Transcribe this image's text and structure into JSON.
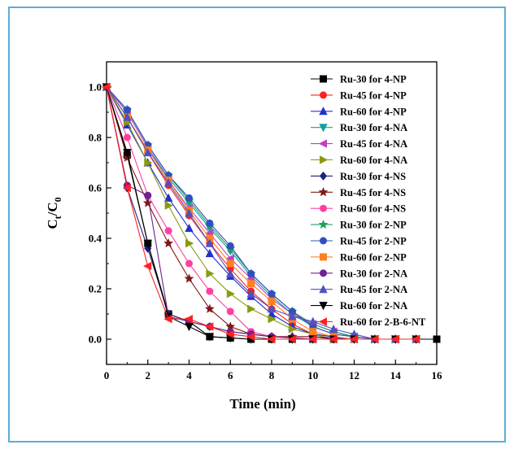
{
  "chart_data": {
    "type": "line",
    "xlabel": "Time (min)",
    "ylabel_main": "C",
    "ylabel_sub1": "t",
    "ylabel_mid": "/C",
    "ylabel_sub2": "0",
    "xlim": [
      0,
      16
    ],
    "ylim": [
      -0.1,
      1.1
    ],
    "xticks": [
      0,
      2,
      4,
      6,
      8,
      10,
      12,
      14,
      16
    ],
    "yticks": [
      0.0,
      0.2,
      0.4,
      0.6,
      0.8,
      1.0
    ],
    "xtick_labels": [
      "0",
      "2",
      "4",
      "6",
      "8",
      "10",
      "12",
      "14",
      "16"
    ],
    "ytick_labels": [
      "0.0",
      "0.2",
      "0.4",
      "0.6",
      "0.8",
      "1.0"
    ],
    "grid": false,
    "legend_position": "top-right",
    "series": [
      {
        "name": "Ru-30 for 4-NP",
        "color": "#000000",
        "marker": "square",
        "x": [
          0,
          1,
          2,
          3,
          4,
          5,
          6,
          7,
          8,
          9,
          10,
          11,
          12,
          13,
          14,
          15,
          16
        ],
        "y": [
          1.0,
          0.73,
          0.38,
          0.1,
          0.07,
          0.01,
          0.005,
          0.0,
          0.0,
          0.0,
          0.0,
          0.0,
          0.0,
          0.0,
          0.0,
          0.0,
          0.0
        ]
      },
      {
        "name": "Ru-45 for 4-NP",
        "color": "#ff2020",
        "marker": "circle",
        "x": [
          0,
          1,
          2,
          3,
          4,
          5,
          6,
          7,
          8,
          9,
          10,
          11,
          12,
          13,
          14,
          15
        ],
        "y": [
          1.0,
          0.88,
          0.74,
          0.61,
          0.49,
          0.38,
          0.28,
          0.19,
          0.12,
          0.06,
          0.02,
          0.01,
          0.0,
          0.0,
          0.0,
          0.0
        ]
      },
      {
        "name": "Ru-60 for 4-NP",
        "color": "#2030d0",
        "marker": "triangle-up",
        "x": [
          0,
          1,
          2,
          3,
          4,
          5,
          6,
          7,
          8,
          9,
          10,
          11,
          12,
          13,
          14,
          15
        ],
        "y": [
          1.0,
          0.85,
          0.7,
          0.56,
          0.44,
          0.34,
          0.25,
          0.17,
          0.1,
          0.05,
          0.02,
          0.01,
          0.0,
          0.0,
          0.0,
          0.0
        ]
      },
      {
        "name": "Ru-30 for 4-NA",
        "color": "#10a0a0",
        "marker": "triangle-down",
        "x": [
          0,
          1,
          2,
          3,
          4,
          5,
          6,
          7,
          8,
          9,
          10,
          11,
          12,
          13,
          14,
          15
        ],
        "y": [
          1.0,
          0.9,
          0.76,
          0.64,
          0.54,
          0.44,
          0.35,
          0.25,
          0.17,
          0.1,
          0.05,
          0.02,
          0.01,
          0.0,
          0.0,
          0.0
        ]
      },
      {
        "name": "Ru-45 for 4-NA",
        "color": "#c040c0",
        "marker": "triangle-left",
        "x": [
          0,
          1,
          2,
          3,
          4,
          5,
          6,
          7,
          8,
          9,
          10,
          11,
          12,
          13,
          14,
          15
        ],
        "y": [
          1.0,
          0.9,
          0.76,
          0.63,
          0.52,
          0.42,
          0.32,
          0.24,
          0.16,
          0.1,
          0.06,
          0.03,
          0.01,
          0.0,
          0.0,
          0.0
        ]
      },
      {
        "name": "Ru-60 for 4-NA",
        "color": "#8a9a10",
        "marker": "triangle-right",
        "x": [
          0,
          1,
          2,
          3,
          4,
          5,
          6,
          7,
          8,
          9,
          10,
          11,
          12,
          13,
          14,
          15
        ],
        "y": [
          1.0,
          0.86,
          0.7,
          0.53,
          0.38,
          0.26,
          0.18,
          0.12,
          0.08,
          0.04,
          0.02,
          0.0,
          0.0,
          0.0,
          0.0,
          0.0
        ]
      },
      {
        "name": "Ru-30 for 4-NS",
        "color": "#202080",
        "marker": "diamond",
        "x": [
          0,
          1,
          2,
          3,
          4,
          5,
          6,
          7,
          8,
          9,
          10,
          11,
          12,
          13,
          14,
          15
        ],
        "y": [
          1.0,
          0.6,
          0.36,
          0.1,
          0.07,
          0.05,
          0.03,
          0.02,
          0.01,
          0.01,
          0.01,
          0.005,
          0.0,
          0.0,
          0.0,
          0.0
        ]
      },
      {
        "name": "Ru-45 for 4-NS",
        "color": "#801818",
        "marker": "star",
        "x": [
          0,
          1,
          2,
          3,
          4,
          5,
          6,
          7,
          8,
          9,
          10,
          11,
          12,
          13,
          14,
          15
        ],
        "y": [
          1.0,
          0.72,
          0.54,
          0.38,
          0.24,
          0.12,
          0.05,
          0.02,
          0.01,
          0.01,
          0.01,
          0.0,
          0.0,
          0.0,
          0.0,
          0.0
        ]
      },
      {
        "name": "Ru-60 for 4-NS",
        "color": "#ff3fa0",
        "marker": "circle",
        "x": [
          0,
          1,
          2,
          3,
          4,
          5,
          6,
          7,
          8,
          9,
          10,
          11,
          12,
          13,
          14,
          15
        ],
        "y": [
          1.0,
          0.8,
          0.57,
          0.43,
          0.3,
          0.19,
          0.11,
          0.03,
          0.01,
          0.005,
          0.0,
          0.0,
          0.0,
          0.0,
          0.0,
          0.0
        ]
      },
      {
        "name": "Ru-30 for 2-NP",
        "color": "#20a060",
        "marker": "star",
        "x": [
          0,
          1,
          2,
          3,
          4,
          5,
          6,
          7,
          8,
          9,
          10,
          11,
          12,
          13,
          14,
          15
        ],
        "y": [
          1.0,
          0.91,
          0.77,
          0.65,
          0.55,
          0.45,
          0.36,
          0.26,
          0.18,
          0.11,
          0.06,
          0.03,
          0.01,
          0.0,
          0.0,
          0.0
        ]
      },
      {
        "name": "Ru-45 for 2-NP",
        "color": "#3050c0",
        "marker": "circle",
        "x": [
          0,
          1,
          2,
          3,
          4,
          5,
          6,
          7,
          8,
          9,
          10,
          11,
          12,
          13,
          14,
          15
        ],
        "y": [
          1.0,
          0.91,
          0.77,
          0.65,
          0.56,
          0.46,
          0.37,
          0.26,
          0.18,
          0.11,
          0.05,
          0.02,
          0.01,
          0.0,
          0.0,
          0.0
        ]
      },
      {
        "name": "Ru-60 for 2-NP",
        "color": "#ff8020",
        "marker": "square",
        "x": [
          0,
          1,
          2,
          3,
          4,
          5,
          6,
          7,
          8,
          9,
          10,
          11,
          12,
          13,
          14,
          15
        ],
        "y": [
          1.0,
          0.88,
          0.75,
          0.63,
          0.51,
          0.4,
          0.3,
          0.22,
          0.15,
          0.08,
          0.03,
          0.01,
          0.0,
          0.0,
          0.0,
          0.0
        ]
      },
      {
        "name": "Ru-30 for 2-NA",
        "color": "#702090",
        "marker": "circle",
        "x": [
          0,
          1,
          2,
          3,
          4,
          5,
          6,
          7,
          8,
          9,
          10,
          11,
          12,
          13,
          14,
          15
        ],
        "y": [
          1.0,
          0.61,
          0.57,
          0.09,
          0.07,
          0.05,
          0.03,
          0.02,
          0.01,
          0.005,
          0.0,
          0.0,
          0.0,
          0.0,
          0.0,
          0.0
        ]
      },
      {
        "name": "Ru-45 for 2-NA",
        "color": "#5050c0",
        "marker": "triangle-up",
        "x": [
          0,
          1,
          2,
          3,
          4,
          5,
          6,
          7,
          8,
          9,
          10,
          11,
          12,
          13,
          14,
          15
        ],
        "y": [
          1.0,
          0.88,
          0.74,
          0.62,
          0.5,
          0.38,
          0.26,
          0.18,
          0.12,
          0.09,
          0.07,
          0.04,
          0.02,
          0.0,
          0.0,
          0.0
        ]
      },
      {
        "name": "Ru-60 for 2-NA",
        "color": "#000000",
        "marker": "triangle-down",
        "x": [
          0,
          1,
          2,
          3,
          4,
          5,
          6,
          7,
          8,
          9,
          10,
          11,
          12,
          13,
          14,
          15
        ],
        "y": [
          1.0,
          0.74,
          0.38,
          0.09,
          0.05,
          0.01,
          0.005,
          0.0,
          0.0,
          0.0,
          0.0,
          0.0,
          0.0,
          0.0,
          0.0,
          0.0
        ]
      },
      {
        "name": "Ru-60 for 2-B-6-NT",
        "color": "#ff2020",
        "marker": "triangle-left",
        "x": [
          0,
          1,
          2,
          3,
          4,
          5,
          6,
          7,
          8,
          9,
          10,
          11,
          12,
          13,
          14,
          15
        ],
        "y": [
          1.0,
          0.6,
          0.29,
          0.08,
          0.08,
          0.05,
          0.02,
          0.01,
          0.0,
          0.0,
          0.0,
          0.0,
          0.0,
          0.0,
          0.0,
          0.0
        ]
      }
    ]
  }
}
